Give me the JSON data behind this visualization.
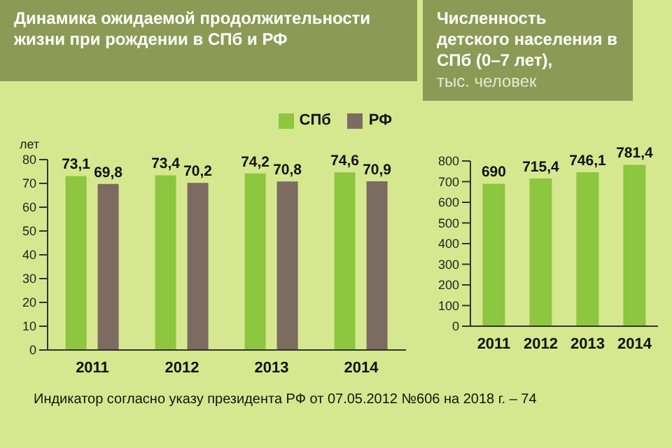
{
  "chart_data": [
    {
      "type": "bar",
      "title": "Динамика ожидаемой продолжительности жизни при рождении в СПб и РФ",
      "ylabel": "лет",
      "categories": [
        "2011",
        "2012",
        "2013",
        "2014"
      ],
      "series": [
        {
          "name": "СПб",
          "color": "#8dc63f",
          "values": [
            73.1,
            73.4,
            74.2,
            74.6
          ],
          "value_labels": [
            "73,1",
            "73,4",
            "74,2",
            "74,6"
          ]
        },
        {
          "name": "РФ",
          "color": "#7b6b60",
          "values": [
            69.8,
            70.2,
            70.8,
            70.9
          ],
          "value_labels": [
            "69,8",
            "70,2",
            "70,8",
            "70,9"
          ]
        }
      ],
      "ylim": [
        0,
        80
      ],
      "yticks": [
        0,
        10,
        20,
        30,
        40,
        50,
        60,
        70,
        80
      ],
      "legend": "top right",
      "annotations": [
        "Индикатор согласно указу президента РФ от 07.05.2012 №606 на 2018 г. – 74"
      ]
    },
    {
      "type": "bar",
      "title": "Численность детского населения в СПб (0–7 лет),",
      "subtitle": "тыс. человек",
      "categories": [
        "2011",
        "2012",
        "2013",
        "2014"
      ],
      "series": [
        {
          "color": "#8dc63f",
          "values": [
            690,
            715.4,
            746.1,
            781.4
          ],
          "value_labels": [
            "690",
            "715,4",
            "746,1",
            "781,4"
          ]
        }
      ],
      "ylim": [
        0,
        800
      ],
      "yticks": [
        0,
        100,
        200,
        300,
        400,
        500,
        600,
        700,
        800
      ]
    }
  ]
}
